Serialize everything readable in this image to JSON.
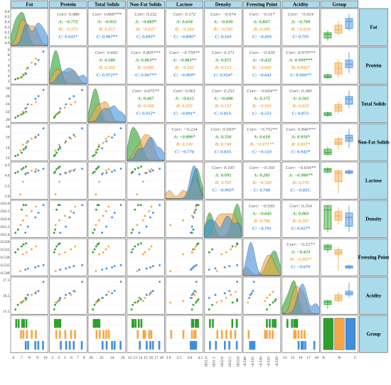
{
  "chart_data": {
    "type": "pair-plot",
    "variables": [
      "Fat",
      "Protein",
      "Total Solids",
      "Non-Fat Solids",
      "Lactose",
      "Density",
      "Freezing Point",
      "Acidity",
      "Group"
    ],
    "groups": [
      "A",
      "B",
      "C"
    ],
    "group_colors": {
      "A": "#2ca02c",
      "B": "#f5a742",
      "C": "#3f8fde"
    },
    "header_color": "#a9dbea",
    "correlations": [
      {
        "row": 0,
        "col": 1,
        "lines": [
          "Corr: 0.086",
          "A: −0.772",
          "B: −0.375",
          "C: 0.933*"
        ]
      },
      {
        "row": 0,
        "col": 2,
        "lines": [
          "Corr: 0.869***",
          "A: −0.055",
          "B: 0.257",
          "C: 0.987**"
        ]
      },
      {
        "row": 0,
        "col": 3,
        "lines": [
          "Corr: 0.232",
          "A: −0.889*",
          "B: −0.627",
          "C: 0.895*"
        ]
      },
      {
        "row": 0,
        "col": 4,
        "lines": [
          "Corr: 0.172",
          "A: 0.658",
          "B: −0.260",
          "C: −0.896*"
        ]
      },
      {
        "row": 0,
        "col": 5,
        "lines": [
          "Corr: −0.074",
          "A: −0.630",
          "B: −0.795",
          "C: 0.103"
        ]
      },
      {
        "row": 0,
        "col": 6,
        "lines": [
          "Corr: −0.317",
          "A: 0.847.",
          "B: 0.589",
          "C: −0.493"
        ]
      },
      {
        "row": 0,
        "col": 7,
        "lines": [
          "Corr: −0.024",
          "A: −0.769",
          "B: −0.629",
          "C: 0.795"
        ]
      },
      {
        "row": 1,
        "col": 2,
        "lines": [
          "Corr: 0.445.",
          "A: 0.580",
          "B: 0.392",
          "C: 0.972**"
        ]
      },
      {
        "row": 1,
        "col": 3,
        "lines": [
          "Corr: 0.805***",
          "A: 0.963**",
          "B: 0.680",
          "C: 0.967**"
        ]
      },
      {
        "row": 1,
        "col": 4,
        "lines": [
          "Corr: −0.759**",
          "A: −0.983**",
          "B: −0.242",
          "C: −0.909*"
        ]
      },
      {
        "row": 1,
        "col": 5,
        "lines": [
          "Corr: 0.271",
          "A: 0.075",
          "B: 0.153",
          "C: 0.924*"
        ]
      },
      {
        "row": 1,
        "col": 6,
        "lines": [
          "Corr: −0.439",
          "A: −0.432",
          "B: −0.645",
          "C: −0.641"
        ]
      },
      {
        "row": 1,
        "col": 7,
        "lines": [
          "Corr: 0.970***",
          "A: 0.999***",
          "B: 0.883*",
          "C: 0.960**"
        ]
      },
      {
        "row": 2,
        "col": 3,
        "lines": [
          "Corr: 0.675**",
          "A: 0.467",
          "B: 0.588",
          "C: 0.952*"
        ]
      },
      {
        "row": 2,
        "col": 4,
        "lines": [
          "Corr: 0.061",
          "A: −0.615",
          "B: 0.455",
          "C: −0.891*"
        ]
      },
      {
        "row": 2,
        "col": 5,
        "lines": [
          "Corr: 0.253",
          "A: −0.408",
          "B: 0.137",
          "C: 0.813."
        ]
      },
      {
        "row": 2,
        "col": 6,
        "lines": [
          "Corr: −0.664**",
          "A: 0.175",
          "B: −0.591",
          "C: −0.551"
        ]
      },
      {
        "row": 2,
        "col": 7,
        "lines": [
          "Corr: 0.390",
          "A: 0.561",
          "B: 0.423",
          "C: 0.873."
        ]
      },
      {
        "row": 3,
        "col": 4,
        "lines": [
          "Corr: −0.224",
          "A: −0.896*",
          "B: 0.530",
          "C: −0.776"
        ]
      },
      {
        "row": 3,
        "col": 5,
        "lines": [
          "Corr: 0.593*",
          "A: 0.326",
          "B: 0.749",
          "C: 0.833."
        ]
      },
      {
        "row": 3,
        "col": 6,
        "lines": [
          "Corr: −0.752**",
          "A: 0.618",
          "B: −0.971**",
          "C: −0.510"
        ]
      },
      {
        "row": 3,
        "col": 7,
        "lines": [
          "Corr: 0.846***",
          "A: 0.956*",
          "B: 0.897*",
          "C: 0.942*"
        ]
      },
      {
        "row": 4,
        "col": 5,
        "lines": [
          "Corr: 0.195",
          "A: 0.091",
          "B: 0.765",
          "C: −0.902*"
        ]
      },
      {
        "row": 4,
        "col": 6,
        "lines": [
          "Corr: −0.160",
          "A: 0.285",
          "B: −0.569",
          "C: 0.748"
        ]
      },
      {
        "row": 4,
        "col": 7,
        "lines": [
          "Corr: −0.654**",
          "A: −0.986**",
          "B: 0.176",
          "C: −0.821."
        ]
      },
      {
        "row": 5,
        "col": 6,
        "lines": [
          "Corr: −0.500.",
          "A: −0.645",
          "B: 0.786",
          "C: −0.791"
        ]
      },
      {
        "row": 5,
        "col": 7,
        "lines": [
          "Corr: 0.354",
          "A: 0.063",
          "B: 0.587",
          "C: 0.957*"
        ]
      },
      {
        "row": 6,
        "col": 7,
        "lines": [
          "Corr: −0.527*",
          "A: −0.423",
          "B: −0.907*",
          "C: −0.670"
        ]
      }
    ],
    "row_axis_ticks": {
      "Fat": [
        "0.6",
        "0.5",
        "0.4",
        "0.3",
        "0.2",
        "0.1",
        "0.0"
      ],
      "Protein": [
        "9",
        "8",
        "7",
        "6",
        "5",
        "4",
        "3"
      ],
      "Total Solids": [
        "28",
        "26",
        "24",
        "22",
        "20"
      ],
      "Non-Fat Solids": [
        "18",
        "16",
        "14",
        "12"
      ],
      "Lactose": [
        "4.5",
        "4.0",
        "3.5",
        "3.0"
      ],
      "Density": [
        "1033.0",
        "1032.5",
        "1032.0",
        "1031.5",
        "1031.0"
      ],
      "Freezing Point": [
        "−0.520",
        "−0.525",
        "−0.530",
        "−0.535",
        "−0.540"
      ],
      "Acidity": [
        "17.5",
        "16.5",
        "15.5"
      ]
    },
    "col_axis_ticks": {
      "Fat": [
        "6",
        "7",
        "8",
        "9",
        "10"
      ],
      "Protein": [
        "3",
        "4",
        "5",
        "6",
        "7",
        "8"
      ],
      "Total Solids": [
        "20",
        "22",
        "24",
        "26"
      ],
      "Non-Fat Solids": [
        "12",
        "13",
        "14",
        "15",
        "16",
        "17",
        "18"
      ],
      "Lactose": [
        "3.0",
        "3.5",
        "4.0",
        "4.5"
      ],
      "Density": [
        "1031.0",
        "1031.5",
        "1032.0",
        "1032.5",
        "1033.0"
      ],
      "Freezing Point": [
        "−0.540",
        "−0.535",
        "−0.530",
        "−0.525",
        "−0.520"
      ],
      "Acidity": [
        "14",
        "15",
        "16",
        "17",
        "18"
      ],
      "Group": [
        "A",
        "B",
        "C"
      ]
    },
    "values": {
      "A": {
        "Fat": [
          5.6,
          6.0,
          6.6,
          6.9,
          7.3
        ],
        "Protein": [
          3.1,
          3.3,
          3.6,
          4.0,
          4.3
        ],
        "Total Solids": [
          19.8,
          20.3,
          20.8,
          21.2,
          21.6
        ],
        "Non-Fat Solids": [
          12.2,
          12.4,
          12.8,
          13.4,
          13.9
        ],
        "Lactose": [
          4.35,
          4.4,
          4.5,
          4.55,
          4.6
        ],
        "Density": [
          1031.1,
          1031.3,
          1032.6,
          1032.9,
          1032.9
        ],
        "Freezing Point": [
          -0.531,
          -0.5295,
          -0.528,
          -0.527,
          -0.5265
        ],
        "Acidity": [
          14.3,
          14.9,
          15.2,
          15.4,
          15.6
        ]
      },
      "B": {
        "Fat": [
          6.4,
          6.8,
          7.4,
          8.2,
          8.9
        ],
        "Protein": [
          3.4,
          4.2,
          5.4,
          6.7,
          7.6
        ],
        "Total Solids": [
          20.7,
          21.7,
          22.9,
          23.8,
          24.6
        ],
        "Non-Fat Solids": [
          13.2,
          14.3,
          14.6,
          15.4,
          15.8
        ],
        "Lactose": [
          3.5,
          4.0,
          4.35,
          4.45,
          4.5
        ],
        "Density": [
          1031.6,
          1031.9,
          1032.2,
          1032.5,
          1032.8
        ],
        "Freezing Point": [
          -0.5405,
          -0.532,
          -0.531,
          -0.5295,
          -0.528
        ],
        "Acidity": [
          15.2,
          15.4,
          15.8,
          16.2,
          16.6
        ]
      },
      "C": {
        "Fat": [
          7.2,
          7.6,
          8.8,
          9.3,
          10.1
        ],
        "Protein": [
          4.4,
          5.6,
          6.4,
          7.3,
          9.1
        ],
        "Total Solids": [
          22.6,
          23.9,
          25.6,
          26.4,
          28.3
        ],
        "Non-Fat Solids": [
          13.6,
          14.9,
          15.6,
          16.1,
          17.3
        ],
        "Lactose": [
          4.3,
          4.35,
          4.4,
          4.45,
          4.52
        ],
        "Density": [
          1031.1,
          1031.5,
          1032.1,
          1032.4,
          1032.9
        ],
        "Freezing Point": [
          -0.5398,
          -0.5392,
          -0.5386,
          -0.538,
          -0.5375
        ],
        "Acidity": [
          15.8,
          16.2,
          16.4,
          16.7,
          17.9
        ]
      }
    }
  }
}
